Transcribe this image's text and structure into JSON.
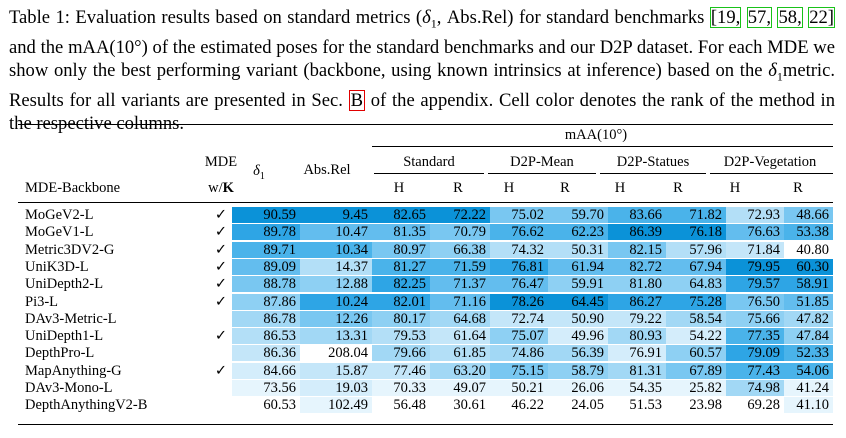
{
  "caption": {
    "p1": "Table 1: Evaluation results based on standard metrics (",
    "delta": "δ",
    "delta_sub": "1",
    "p2": ", Abs.Rel) for standard benchmarks ",
    "refs": [
      "[19,",
      "57,",
      "58,",
      "22]"
    ],
    "p3": " and the mAA(10°) of the estimated poses for the standard benchmarks and our D2P dataset. For each MDE we show only the best performing variant (backbone, using known intrinsics at inference) based on the ",
    "p4": "metric. Results for all variants are presented in Sec. ",
    "ref_b": "B",
    "p5": " of the appendix. Cell color denotes the rank of the method in the respective columns."
  },
  "header": {
    "mde_backbone": "MDE-Backbone",
    "mde_top": "MDE",
    "mde_bottom_w": "w/",
    "mde_bottom_k": "K",
    "delta": "δ",
    "delta_sub": "1",
    "absrel": "Abs.Rel",
    "maa": "mAA(10°)",
    "groups": [
      "Standard",
      "D2P-Mean",
      "D2P-Statues",
      "D2P-Vegetation"
    ],
    "sub": [
      "H",
      "R",
      "H",
      "R",
      "H",
      "R",
      "H",
      "R"
    ]
  },
  "check_symbol": "✓",
  "rows": [
    {
      "name": "MoGeV2-L",
      "check": true,
      "values": [
        "90.59",
        "9.45",
        "82.65",
        "72.22",
        "75.02",
        "59.70",
        "83.66",
        "71.82",
        "72.93",
        "48.66"
      ],
      "ranks": [
        1,
        1,
        1,
        1,
        5,
        5,
        3,
        3,
        8,
        5
      ]
    },
    {
      "name": "MoGeV1-L",
      "check": true,
      "values": [
        "89.78",
        "10.47",
        "81.35",
        "70.79",
        "76.62",
        "62.23",
        "86.39",
        "76.18",
        "76.63",
        "53.38"
      ],
      "ranks": [
        2,
        4,
        4,
        5,
        3,
        3,
        1,
        1,
        4,
        3
      ]
    },
    {
      "name": "Metric3DV2-G",
      "check": true,
      "values": [
        "89.71",
        "10.34",
        "80.97",
        "66.38",
        "74.32",
        "50.31",
        "82.15",
        "57.96",
        "71.84",
        "40.80"
      ],
      "ranks": [
        3,
        3,
        5,
        6,
        8,
        8,
        5,
        8,
        9,
        12
      ]
    },
    {
      "name": "UniK3D-L",
      "check": true,
      "values": [
        "89.09",
        "14.37",
        "81.27",
        "71.59",
        "76.81",
        "61.94",
        "82.72",
        "67.94",
        "79.95",
        "60.30"
      ],
      "ranks": [
        4,
        8,
        3,
        3,
        2,
        4,
        4,
        4,
        1,
        1
      ]
    },
    {
      "name": "UniDepth2-L",
      "check": true,
      "values": [
        "88.78",
        "12.88",
        "82.25",
        "71.37",
        "76.47",
        "59.91",
        "81.80",
        "64.83",
        "79.57",
        "58.91"
      ],
      "ranks": [
        5,
        6,
        2,
        4,
        4,
        6,
        6,
        6,
        2,
        2
      ]
    },
    {
      "name": "Pi3-L",
      "check": true,
      "values": [
        "87.86",
        "10.24",
        "82.01",
        "71.16",
        "78.26",
        "64.45",
        "86.27",
        "75.28",
        "76.50",
        "51.85"
      ],
      "ranks": [
        6,
        2,
        2,
        4,
        1,
        1,
        2,
        2,
        5,
        4
      ]
    },
    {
      "name": "DAv3-Metric-L",
      "check": false,
      "values": [
        "86.78",
        "12.26",
        "80.17",
        "64.68",
        "72.74",
        "50.90",
        "79.22",
        "58.54",
        "75.66",
        "47.82"
      ],
      "ranks": [
        7,
        5,
        6,
        7,
        9,
        9,
        9,
        7,
        6,
        7
      ]
    },
    {
      "name": "UniDepth1-L",
      "check": true,
      "values": [
        "86.53",
        "13.31",
        "79.53",
        "61.64",
        "75.07",
        "49.96",
        "80.93",
        "54.22",
        "77.35",
        "47.84"
      ],
      "ranks": [
        8,
        7,
        8,
        9,
        6,
        10,
        7,
        10,
        3,
        6
      ]
    },
    {
      "name": "DepthPro-L",
      "check": false,
      "values": [
        "86.36",
        "208.04",
        "79.66",
        "61.85",
        "74.86",
        "56.39",
        "76.91",
        "60.57",
        "79.09",
        "52.33"
      ],
      "ranks": [
        9,
        12,
        7,
        8,
        7,
        7,
        10,
        6,
        2,
        3
      ]
    },
    {
      "name": "MapAnything-G",
      "check": true,
      "values": [
        "84.66",
        "15.87",
        "77.46",
        "63.20",
        "75.15",
        "58.79",
        "81.31",
        "67.89",
        "77.43",
        "54.06"
      ],
      "ranks": [
        10,
        9,
        9,
        7,
        5,
        6,
        7,
        5,
        3,
        3
      ]
    },
    {
      "name": "DAv3-Mono-L",
      "check": false,
      "values": [
        "73.56",
        "19.03",
        "70.33",
        "49.07",
        "50.21",
        "26.06",
        "54.35",
        "25.82",
        "74.98",
        "41.24"
      ],
      "ranks": [
        11,
        10,
        11,
        11,
        11,
        11,
        11,
        11,
        7,
        11
      ]
    },
    {
      "name": "DepthAnythingV2-B",
      "check": false,
      "values": [
        "60.53",
        "102.49",
        "56.48",
        "30.61",
        "46.22",
        "24.05",
        "51.53",
        "23.98",
        "69.28",
        "41.10"
      ],
      "ranks": [
        12,
        11,
        12,
        12,
        12,
        12,
        12,
        12,
        12,
        11
      ]
    }
  ],
  "rank_colors": [
    "#0b92d8",
    "#2ea5e5",
    "#4ab3ea",
    "#63bdee",
    "#79c7f1",
    "#8ed0f3",
    "#a2d8f5",
    "#b3dff7",
    "#c4e6f9",
    "#d4edfb",
    "#e6f5fd",
    "#ffffff"
  ]
}
